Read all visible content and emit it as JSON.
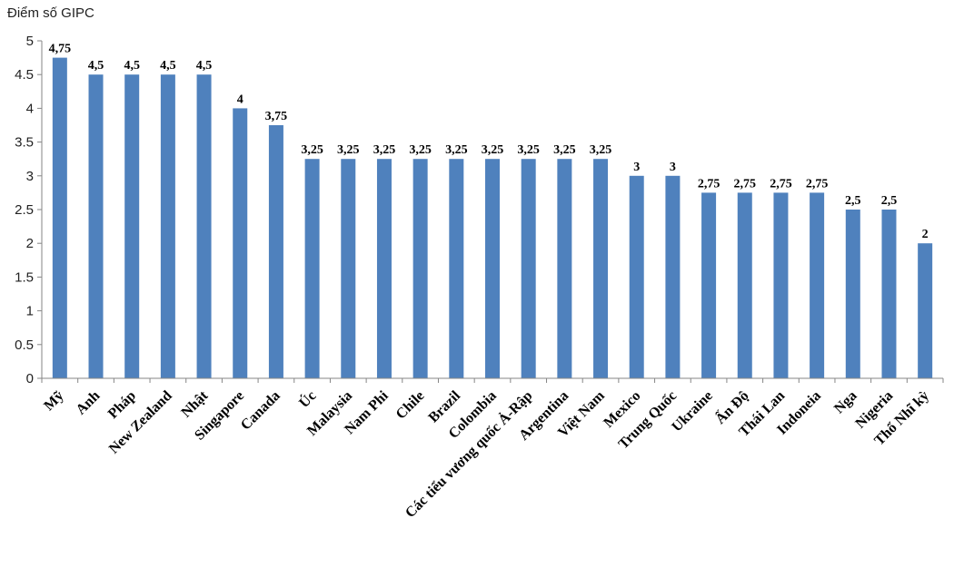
{
  "chart_data": {
    "type": "bar",
    "ylabel": "Điểm số GIPC",
    "ylim": [
      0,
      5
    ],
    "yticks": [
      "0",
      "0.5",
      "1",
      "1.5",
      "2",
      "2.5",
      "3",
      "3.5",
      "4",
      "4.5",
      "5"
    ],
    "grid": false,
    "bar_color": "#4F81BD",
    "categories": [
      "Mỹ",
      "Anh",
      "Pháp",
      "New Zealand",
      "Nhật",
      "Singapore",
      "Canada",
      "Úc",
      "Malaysia",
      "Nam Phi",
      "Chile",
      "Brazil",
      "Colombia",
      "Các tiểu vương quốc Ả-Rập",
      "Argentina",
      "Việt Nam",
      "Mexico",
      "Trung Quốc",
      "Ukraine",
      "Ấn Độ",
      "Thái Lan",
      "Indoneia",
      "Nga",
      "Nigeria",
      "Thổ Nhĩ kỳ"
    ],
    "values": [
      4.75,
      4.5,
      4.5,
      4.5,
      4.5,
      4,
      3.75,
      3.25,
      3.25,
      3.25,
      3.25,
      3.25,
      3.25,
      3.25,
      3.25,
      3.25,
      3,
      3,
      2.75,
      2.75,
      2.75,
      2.75,
      2.5,
      2.5,
      2
    ],
    "data_labels": [
      "4,75",
      "4,5",
      "4,5",
      "4,5",
      "4,5",
      "4",
      "3,75",
      "3,25",
      "3,25",
      "3,25",
      "3,25",
      "3,25",
      "3,25",
      "3,25",
      "3,25",
      "3,25",
      "3",
      "3",
      "2,75",
      "2,75",
      "2,75",
      "2,75",
      "2,5",
      "2,5",
      "2"
    ]
  }
}
